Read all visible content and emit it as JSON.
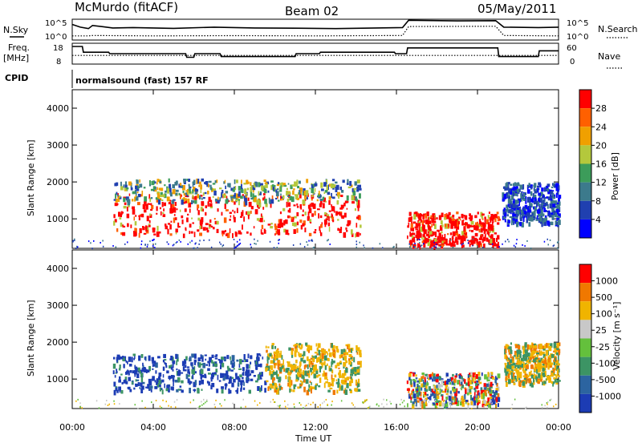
{
  "header": {
    "site": "McMurdo (fitACF)",
    "beam": "Beam 02",
    "date": "05/May/2011"
  },
  "chart_data": [
    {
      "type": "line",
      "name": "noise-panel",
      "left_label": "N.Sky",
      "right_label": "N.Search",
      "left_ticks": [
        "10^5",
        "10^0"
      ],
      "right_ticks": [
        "10^5",
        "10^0"
      ],
      "x_range_hours": [
        0,
        24
      ],
      "series": [
        {
          "name": "N.Sky",
          "style": "solid",
          "x": [
            0,
            0.4,
            0.8,
            1.0,
            2.0,
            3.0,
            5.0,
            7.0,
            9.0,
            11.0,
            13.0,
            15.0,
            16.3,
            16.6,
            19.0,
            20.9,
            21.3,
            23.0,
            24.0
          ],
          "y": [
            0.75,
            0.62,
            0.55,
            0.7,
            0.58,
            0.6,
            0.56,
            0.62,
            0.58,
            0.57,
            0.55,
            0.58,
            0.6,
            0.95,
            0.92,
            0.93,
            0.62,
            0.6,
            0.62
          ]
        },
        {
          "name": "N.Search",
          "style": "dotted",
          "x": [
            0,
            0.8,
            1.0,
            4.0,
            8.0,
            12.0,
            16.3,
            16.6,
            20.9,
            21.3,
            24.0
          ],
          "y": [
            0.2,
            0.2,
            0.22,
            0.2,
            0.21,
            0.2,
            0.22,
            0.65,
            0.66,
            0.22,
            0.2
          ]
        }
      ]
    },
    {
      "type": "line",
      "name": "freq-panel",
      "left_label_line1": "Freq.",
      "left_label_line2": "[MHz]",
      "right_label": "Nave",
      "left_ticks": [
        "18",
        "8"
      ],
      "right_ticks": [
        "60",
        "0"
      ],
      "x_range_hours": [
        0,
        24
      ],
      "series": [
        {
          "name": "Freq.",
          "style": "solid",
          "x": [
            0,
            0.5,
            0.55,
            1.8,
            1.85,
            5.6,
            5.65,
            6.0,
            6.05,
            7.3,
            7.35,
            11.0,
            11.05,
            12.2,
            12.25,
            15.9,
            15.95,
            16.5,
            16.55,
            21.0,
            21.05,
            23.0,
            23.05,
            24.0
          ],
          "y": [
            18,
            18,
            14,
            14,
            13,
            13,
            10.5,
            10.5,
            13,
            13,
            11,
            11,
            13,
            13,
            14,
            14,
            13,
            13,
            17,
            17,
            11,
            11,
            15,
            15
          ]
        },
        {
          "name": "Nave",
          "style": "dotted",
          "x": [
            0,
            24
          ],
          "y": [
            24,
            24
          ]
        }
      ]
    },
    {
      "type": "heatmap",
      "name": "power-panel",
      "cpid_label": "CPID",
      "program": "normalsound (fast) 157 RF",
      "ylabel": "Slant Range [km]",
      "y_ticks": [
        "4000",
        "3000",
        "2000",
        "1000"
      ],
      "y_range_km": [
        200,
        4500
      ],
      "colorbar_label": "Power [dB]",
      "colorbar_ticks": [
        "28",
        "24",
        "20",
        "16",
        "12",
        "8",
        "4"
      ],
      "colorbar_colors": [
        "#0000ff",
        "#2040b0",
        "#3c7a8c",
        "#3c9c5a",
        "#b4c83c",
        "#f0a000",
        "#ff6000",
        "#ff0000"
      ],
      "blobs": [
        {
          "t0": 2.0,
          "t1": 14.2,
          "r0": 600,
          "r1": 1700,
          "value": "high"
        },
        {
          "t0": 2.0,
          "t1": 14.2,
          "r0": 1500,
          "r1": 2100,
          "value": "mid"
        },
        {
          "t0": 16.5,
          "t1": 21.0,
          "r0": 300,
          "r1": 1200,
          "value": "high"
        },
        {
          "t0": 21.2,
          "t1": 24.0,
          "r0": 900,
          "r1": 2000,
          "value": "low"
        }
      ]
    },
    {
      "type": "heatmap",
      "name": "velocity-panel",
      "ylabel": "Slant Range [km]",
      "xlabel": "Time UT",
      "y_ticks": [
        "4000",
        "3000",
        "2000",
        "1000"
      ],
      "x_ticks": [
        "00:00",
        "04:00",
        "08:00",
        "12:00",
        "16:00",
        "20:00",
        "00:00"
      ],
      "y_range_km": [
        200,
        4500
      ],
      "colorbar_label": "Velocity [m s⁻¹]",
      "colorbar_ticks": [
        "1000",
        "500",
        "100",
        "25",
        "-25",
        "-100",
        "-500",
        "-1000"
      ],
      "colorbar_colors": [
        "#1c3cb4",
        "#2c64a0",
        "#3c9464",
        "#64c03c",
        "#c8c8c8",
        "#f0b400",
        "#f07800",
        "#ff0000"
      ],
      "blobs": [
        {
          "t0": 2.0,
          "t1": 9.5,
          "r0": 700,
          "r1": 1700,
          "value": "toward"
        },
        {
          "t0": 9.5,
          "t1": 14.2,
          "r0": 700,
          "r1": 2000,
          "value": "away"
        },
        {
          "t0": 16.5,
          "t1": 21.0,
          "r0": 300,
          "r1": 1200,
          "value": "mixed"
        },
        {
          "t0": 21.3,
          "t1": 24.0,
          "r0": 900,
          "r1": 2000,
          "value": "away"
        }
      ]
    }
  ]
}
